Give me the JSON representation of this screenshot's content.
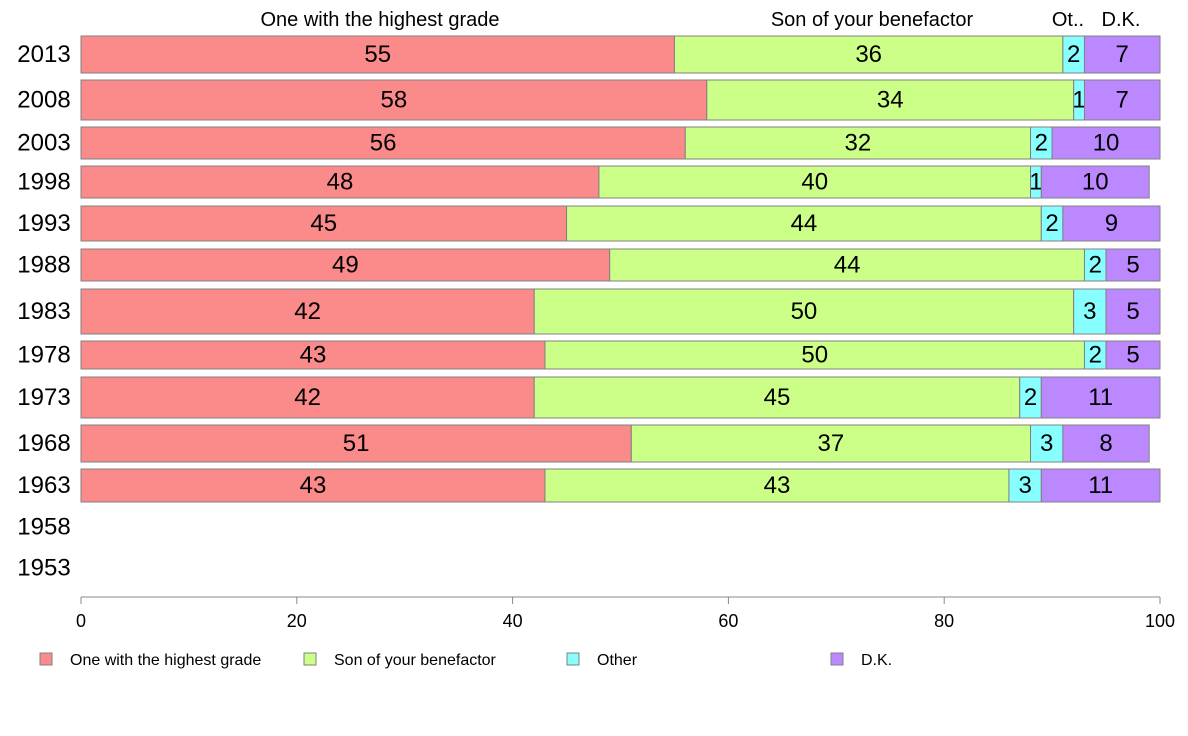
{
  "chart_data": {
    "type": "bar",
    "orientation": "horizontal",
    "stacked": true,
    "categories": [
      "2013",
      "2008",
      "2003",
      "1998",
      "1993",
      "1988",
      "1983",
      "1978",
      "1973",
      "1968",
      "1963",
      "1958",
      "1953"
    ],
    "series": [
      {
        "name": "One with the highest grade",
        "color": "#fb8a8a",
        "values": [
          55,
          58,
          56,
          48,
          45,
          49,
          42,
          43,
          42,
          51,
          43,
          null,
          null
        ]
      },
      {
        "name": "Son of your benefactor",
        "color": "#ccff88",
        "values": [
          36,
          34,
          32,
          40,
          44,
          44,
          50,
          50,
          45,
          37,
          43,
          null,
          null
        ]
      },
      {
        "name": "Other",
        "color": "#88ffff",
        "values": [
          2,
          1,
          2,
          1,
          2,
          2,
          3,
          2,
          2,
          3,
          3,
          null,
          null
        ]
      },
      {
        "name": "D.K.",
        "color": "#bb88ff",
        "values": [
          7,
          7,
          10,
          10,
          9,
          5,
          5,
          5,
          11,
          8,
          11,
          null,
          null
        ]
      }
    ],
    "column_headers": [
      "One with the highest grade",
      "Son of your benefactor",
      "Ot..",
      "D.K."
    ],
    "xlim": [
      0,
      100
    ],
    "xticks": [
      0,
      20,
      40,
      60,
      80,
      100
    ],
    "legend_position": "bottom",
    "grid": false
  }
}
